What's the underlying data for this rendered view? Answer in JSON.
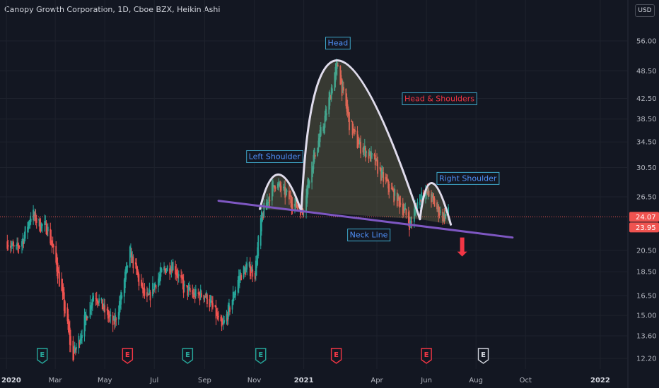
{
  "header": {
    "title": "Canopy Growth Corporation, 1D, Cboe BZX, Heikin Ashi",
    "currency": "USD"
  },
  "colors": {
    "background": "#131722",
    "up": "#26a69a",
    "down": "#ef5350",
    "label_blue": "#4f8ff7",
    "label_red": "#f23645",
    "pattern_outline": "#e0dcec",
    "neckline": "#7e57c2",
    "price_line": "#ef5350"
  },
  "icons": {
    "earnings_marker": "E",
    "breakdown_arrow": "down-arrow-icon"
  },
  "chart_data": {
    "type": "candlestick",
    "style": "Heikin Ashi",
    "title": "Canopy Growth Corporation, 1D, Cboe BZX, Heikin Ashi",
    "y_scale": "log",
    "ylim": [
      11.6,
      62
    ],
    "y_ticks": [
      "12.20",
      "13.60",
      "15.00",
      "16.50",
      "18.50",
      "20.50",
      "26.50",
      "30.50",
      "34.50",
      "38.50",
      "42.50",
      "48.50",
      "56.00"
    ],
    "x_ticks": [
      {
        "label": "2020",
        "date": "2020-01-01",
        "bold": true
      },
      {
        "label": "Mar",
        "date": "2020-03-01",
        "bold": false
      },
      {
        "label": "May",
        "date": "2020-05-01",
        "bold": false
      },
      {
        "label": "Jul",
        "date": "2020-07-01",
        "bold": false
      },
      {
        "label": "Sep",
        "date": "2020-09-01",
        "bold": false
      },
      {
        "label": "Nov",
        "date": "2020-11-01",
        "bold": false
      },
      {
        "label": "2021",
        "date": "2021-01-01",
        "bold": true
      },
      {
        "label": "Apr",
        "date": "2021-04-01",
        "bold": false
      },
      {
        "label": "Jun",
        "date": "2021-06-01",
        "bold": false
      },
      {
        "label": "Aug",
        "date": "2021-08-01",
        "bold": false
      },
      {
        "label": "Oct",
        "date": "2021-10-01",
        "bold": false
      },
      {
        "label": "2022",
        "date": "2022-01-01",
        "bold": true
      }
    ],
    "close_path": [
      [
        "2020-01-02",
        21.4
      ],
      [
        "2020-01-12",
        20.4
      ],
      [
        "2020-01-22",
        21.8
      ],
      [
        "2020-02-01",
        24.6
      ],
      [
        "2020-02-10",
        23.2
      ],
      [
        "2020-02-20",
        22.9
      ],
      [
        "2020-03-01",
        19.6
      ],
      [
        "2020-03-08",
        17.0
      ],
      [
        "2020-03-16",
        14.2
      ],
      [
        "2020-03-22",
        12.2
      ],
      [
        "2020-03-28",
        13.0
      ],
      [
        "2020-04-06",
        14.6
      ],
      [
        "2020-04-18",
        16.8
      ],
      [
        "2020-05-01",
        15.3
      ],
      [
        "2020-05-12",
        14.3
      ],
      [
        "2020-05-22",
        16.6
      ],
      [
        "2020-06-01",
        20.3
      ],
      [
        "2020-06-12",
        17.6
      ],
      [
        "2020-06-22",
        16.0
      ],
      [
        "2020-07-01",
        17.4
      ],
      [
        "2020-07-12",
        18.6
      ],
      [
        "2020-07-24",
        19.2
      ],
      [
        "2020-08-06",
        17.1
      ],
      [
        "2020-08-18",
        16.5
      ],
      [
        "2020-09-01",
        16.6
      ],
      [
        "2020-09-12",
        15.4
      ],
      [
        "2020-09-22",
        14.0
      ],
      [
        "2020-10-02",
        15.6
      ],
      [
        "2020-10-14",
        18.2
      ],
      [
        "2020-10-24",
        18.9
      ],
      [
        "2020-11-02",
        18.4
      ],
      [
        "2020-11-09",
        23.6
      ],
      [
        "2020-11-16",
        25.8
      ],
      [
        "2020-11-26",
        28.4
      ],
      [
        "2020-12-08",
        27.0
      ],
      [
        "2020-12-20",
        25.6
      ],
      [
        "2020-12-31",
        24.9
      ],
      [
        "2021-01-08",
        29.6
      ],
      [
        "2021-01-16",
        33.4
      ],
      [
        "2021-01-24",
        36.8
      ],
      [
        "2021-02-01",
        42.0
      ],
      [
        "2021-02-07",
        47.5
      ],
      [
        "2021-02-12",
        50.0
      ],
      [
        "2021-02-18",
        43.5
      ],
      [
        "2021-02-26",
        37.8
      ],
      [
        "2021-03-08",
        34.2
      ],
      [
        "2021-03-18",
        33.0
      ],
      [
        "2021-03-28",
        31.6
      ],
      [
        "2021-04-08",
        29.0
      ],
      [
        "2021-04-20",
        27.0
      ],
      [
        "2021-05-01",
        25.5
      ],
      [
        "2021-05-12",
        23.2
      ],
      [
        "2021-05-20",
        25.6
      ],
      [
        "2021-05-28",
        27.4
      ],
      [
        "2021-06-06",
        26.5
      ],
      [
        "2021-06-14",
        25.0
      ],
      [
        "2021-06-22",
        24.1
      ],
      [
        "2021-06-28",
        24.5
      ]
    ],
    "last_price": 24.07,
    "secondary_price": 23.95,
    "earnings_markers": [
      {
        "date": "2020-02-14",
        "type": "up"
      },
      {
        "date": "2020-05-29",
        "type": "down"
      },
      {
        "date": "2020-08-11",
        "type": "up"
      },
      {
        "date": "2020-11-09",
        "type": "up"
      },
      {
        "date": "2021-02-10",
        "type": "down"
      },
      {
        "date": "2021-06-01",
        "type": "down"
      },
      {
        "date": "2021-08-10",
        "type": "upcoming"
      }
    ],
    "annotations": [
      {
        "id": "head",
        "text": "Head",
        "color": "blue",
        "date": "2021-02-12",
        "price": 55.5
      },
      {
        "id": "left-shoulder",
        "text": "Left Shoulder",
        "color": "blue",
        "date": "2020-11-26",
        "price": 32.2
      },
      {
        "id": "head-and-shoulders",
        "text": "Head & Shoulders",
        "color": "red",
        "date": "2021-06-17",
        "price": 42.5
      },
      {
        "id": "right-shoulder",
        "text": "Right Shoulder",
        "color": "blue",
        "date": "2021-07-22",
        "price": 29.0
      },
      {
        "id": "neck-line",
        "text": "Neck Line",
        "color": "blue",
        "date": "2021-03-22",
        "price": 22.1
      }
    ],
    "pattern": {
      "neckline": [
        [
          "2020-09-18",
          26.0
        ],
        [
          "2021-09-15",
          21.8
        ]
      ],
      "left_shoulder_arc": [
        [
          "2020-11-08",
          25.0
        ],
        [
          "2020-12-01",
          29.5
        ],
        [
          "2020-12-29",
          24.7
        ]
      ],
      "head_arc": [
        [
          "2020-12-29",
          24.7
        ],
        [
          "2021-02-12",
          51.0
        ],
        [
          "2021-05-24",
          23.8
        ]
      ],
      "right_shoulder_arc": [
        [
          "2021-05-24",
          23.8
        ],
        [
          "2021-06-08",
          28.3
        ],
        [
          "2021-07-01",
          23.2
        ]
      ],
      "breakdown_arrow": {
        "date": "2021-07-15",
        "price_top": 21.8,
        "price_bottom": 19.9
      }
    }
  }
}
